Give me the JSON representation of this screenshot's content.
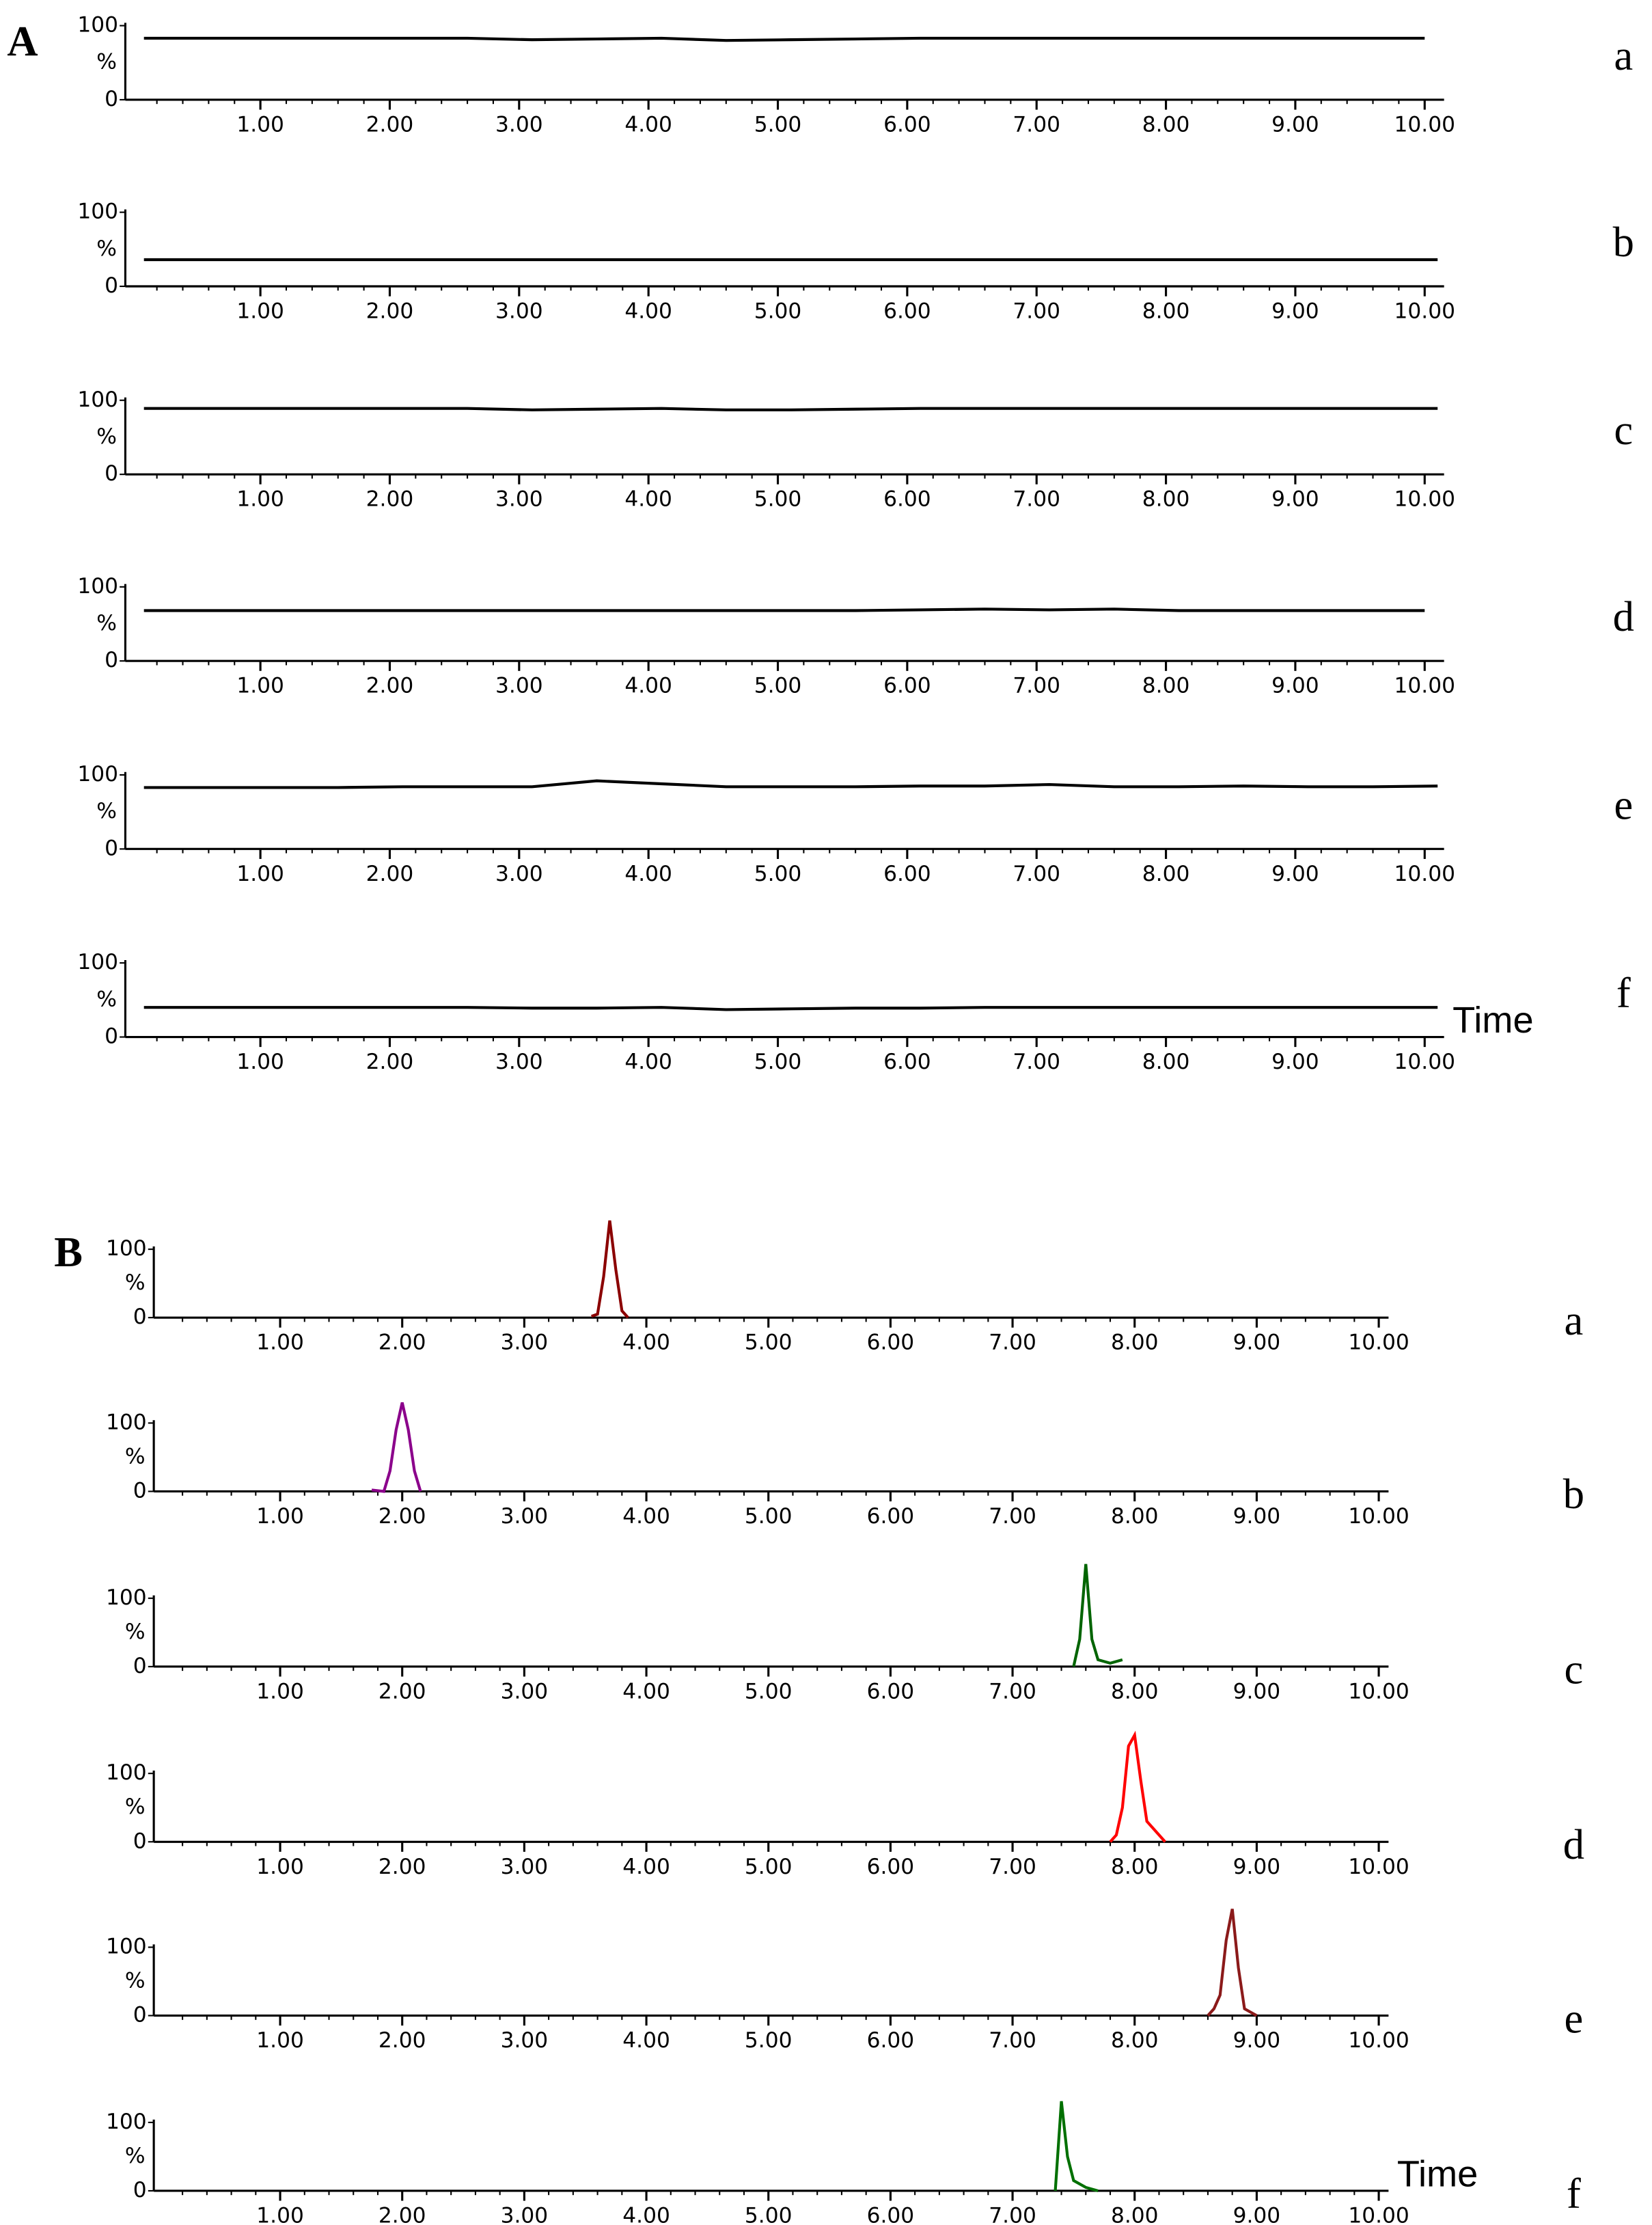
{
  "chart_data": [
    {
      "type": "line",
      "panel": "A",
      "label": "a",
      "y_label": "%",
      "xlim": [
        0,
        10.15
      ],
      "ylim": [
        0,
        100
      ],
      "yticks": [
        0,
        100
      ],
      "xticks": [
        {
          "value": 1,
          "label": "1.00"
        },
        {
          "value": 2,
          "label": "2.00"
        },
        {
          "value": 3,
          "label": "3.00"
        },
        {
          "value": 4,
          "label": "4.00"
        },
        {
          "value": 5,
          "label": "5.00"
        },
        {
          "value": 6,
          "label": "6.00"
        },
        {
          "value": 7,
          "label": "7.00"
        },
        {
          "value": 8,
          "label": "8.00"
        },
        {
          "value": 9,
          "label": "9.00"
        },
        {
          "value": 10,
          "label": "10.00"
        }
      ],
      "x": [
        0.1,
        0.6,
        1.1,
        1.6,
        2.1,
        2.6,
        3.1,
        3.6,
        4.1,
        4.6,
        5.1,
        5.6,
        6.1,
        6.6,
        7.1,
        7.6,
        8.1,
        8.6,
        9.1,
        9.6,
        10.0
      ],
      "series": [
        {
          "color": "#000000",
          "values": [
            83,
            83,
            83,
            83,
            83,
            83,
            81,
            82,
            83,
            80,
            81,
            82,
            83,
            83,
            83,
            83,
            83,
            83,
            83,
            83,
            83
          ]
        }
      ]
    },
    {
      "type": "line",
      "label": "b",
      "y_label": "%",
      "xlim": [
        0,
        10.15
      ],
      "ylim": [
        0,
        100
      ],
      "yticks": [
        0,
        100
      ],
      "xticks": [
        {
          "value": 1,
          "label": "1.00"
        },
        {
          "value": 2,
          "label": "2.00"
        },
        {
          "value": 3,
          "label": "3.00"
        },
        {
          "value": 4,
          "label": "4.00"
        },
        {
          "value": 5,
          "label": "5.00"
        },
        {
          "value": 6,
          "label": "6.00"
        },
        {
          "value": 7,
          "label": "7.00"
        },
        {
          "value": 8,
          "label": "8.00"
        },
        {
          "value": 9,
          "label": "9.00"
        },
        {
          "value": 10,
          "label": "10.00"
        }
      ],
      "x": [
        0.1,
        0.6,
        1.1,
        1.6,
        2.1,
        2.6,
        3.1,
        3.6,
        4.1,
        4.6,
        5.1,
        5.6,
        6.1,
        6.6,
        7.1,
        7.6,
        8.1,
        8.6,
        9.1,
        9.6,
        10.1
      ],
      "series": [
        {
          "color": "#000000",
          "values": [
            36,
            36,
            36,
            36,
            36,
            36,
            36,
            36,
            36,
            36,
            36,
            36,
            36,
            36,
            36,
            36,
            36,
            36,
            36,
            36,
            36
          ]
        }
      ]
    },
    {
      "type": "line",
      "label": "c",
      "y_label": "%",
      "xlim": [
        0,
        10.15
      ],
      "ylim": [
        0,
        100
      ],
      "yticks": [
        0,
        100
      ],
      "xticks": [
        {
          "value": 1,
          "label": "1.00"
        },
        {
          "value": 2,
          "label": "2.00"
        },
        {
          "value": 3,
          "label": "3.00"
        },
        {
          "value": 4,
          "label": "4.00"
        },
        {
          "value": 5,
          "label": "5.00"
        },
        {
          "value": 6,
          "label": "6.00"
        },
        {
          "value": 7,
          "label": "7.00"
        },
        {
          "value": 8,
          "label": "8.00"
        },
        {
          "value": 9,
          "label": "9.00"
        },
        {
          "value": 10,
          "label": "10.00"
        }
      ],
      "x": [
        0.1,
        0.6,
        1.1,
        1.6,
        2.1,
        2.6,
        3.1,
        3.6,
        4.1,
        4.6,
        5.1,
        5.6,
        6.1,
        6.6,
        7.1,
        7.6,
        8.1,
        8.6,
        9.1,
        9.6,
        10.1
      ],
      "series": [
        {
          "color": "#000000",
          "values": [
            89,
            89,
            89,
            89,
            89,
            89,
            87,
            88,
            89,
            87,
            87,
            88,
            89,
            89,
            89,
            89,
            89,
            89,
            89,
            89,
            89
          ]
        }
      ]
    },
    {
      "type": "line",
      "label": "d",
      "y_label": "%",
      "xlim": [
        0,
        10.15
      ],
      "ylim": [
        0,
        100
      ],
      "yticks": [
        0,
        100
      ],
      "xticks": [
        {
          "value": 1,
          "label": "1.00"
        },
        {
          "value": 2,
          "label": "2.00"
        },
        {
          "value": 3,
          "label": "3.00"
        },
        {
          "value": 4,
          "label": "4.00"
        },
        {
          "value": 5,
          "label": "5.00"
        },
        {
          "value": 6,
          "label": "6.00"
        },
        {
          "value": 7,
          "label": "7.00"
        },
        {
          "value": 8,
          "label": "8.00"
        },
        {
          "value": 9,
          "label": "9.00"
        },
        {
          "value": 10,
          "label": "10.00"
        }
      ],
      "x": [
        0.1,
        0.6,
        1.1,
        1.6,
        2.1,
        2.6,
        3.1,
        3.6,
        4.1,
        4.6,
        5.1,
        5.6,
        6.1,
        6.6,
        7.1,
        7.6,
        8.1,
        8.6,
        9.1,
        9.6,
        10.0
      ],
      "series": [
        {
          "color": "#000000",
          "values": [
            68,
            68,
            68,
            68,
            68,
            68,
            68,
            68,
            68,
            68,
            68,
            68,
            69,
            70,
            69,
            70,
            68,
            68,
            68,
            68,
            68
          ]
        }
      ]
    },
    {
      "type": "line",
      "label": "e",
      "y_label": "%",
      "xlim": [
        0,
        10.15
      ],
      "ylim": [
        0,
        100
      ],
      "yticks": [
        0,
        100
      ],
      "xticks": [
        {
          "value": 1,
          "label": "1.00"
        },
        {
          "value": 2,
          "label": "2.00"
        },
        {
          "value": 3,
          "label": "3.00"
        },
        {
          "value": 4,
          "label": "4.00"
        },
        {
          "value": 5,
          "label": "5.00"
        },
        {
          "value": 6,
          "label": "6.00"
        },
        {
          "value": 7,
          "label": "7.00"
        },
        {
          "value": 8,
          "label": "8.00"
        },
        {
          "value": 9,
          "label": "9.00"
        },
        {
          "value": 10,
          "label": "10.00"
        }
      ],
      "x": [
        0.1,
        0.6,
        1.1,
        1.6,
        2.1,
        2.6,
        3.1,
        3.6,
        4.1,
        4.6,
        5.1,
        5.6,
        6.1,
        6.6,
        7.1,
        7.6,
        8.1,
        8.6,
        9.1,
        9.6,
        10.1
      ],
      "series": [
        {
          "color": "#000000",
          "values": [
            83,
            83,
            83,
            83,
            84,
            84,
            84,
            92,
            88,
            84,
            84,
            84,
            85,
            85,
            87,
            84,
            84,
            85,
            84,
            84,
            85
          ]
        }
      ]
    },
    {
      "type": "line",
      "label": "f",
      "y_label": "%",
      "x_label": "Time",
      "xlim": [
        0,
        10.15
      ],
      "ylim": [
        0,
        100
      ],
      "yticks": [
        0,
        100
      ],
      "xticks": [
        {
          "value": 1,
          "label": "1.00"
        },
        {
          "value": 2,
          "label": "2.00"
        },
        {
          "value": 3,
          "label": "3.00"
        },
        {
          "value": 4,
          "label": "4.00"
        },
        {
          "value": 5,
          "label": "5.00"
        },
        {
          "value": 6,
          "label": "6.00"
        },
        {
          "value": 7,
          "label": "7.00"
        },
        {
          "value": 8,
          "label": "8.00"
        },
        {
          "value": 9,
          "label": "9.00"
        },
        {
          "value": 10,
          "label": "10.00"
        }
      ],
      "x": [
        0.1,
        0.6,
        1.1,
        1.6,
        2.1,
        2.6,
        3.1,
        3.6,
        4.1,
        4.6,
        5.1,
        5.6,
        6.1,
        6.6,
        7.1,
        7.6,
        8.1,
        8.6,
        9.1,
        9.6,
        10.1
      ],
      "series": [
        {
          "color": "#000000",
          "values": [
            40,
            40,
            40,
            40,
            40,
            40,
            39,
            39,
            40,
            37,
            38,
            39,
            39,
            40,
            40,
            40,
            40,
            40,
            40,
            40,
            40
          ]
        }
      ]
    },
    {
      "type": "line",
      "panel": "B",
      "label": "a",
      "y_label": "%",
      "xlim": [
        0,
        10.08
      ],
      "ylim": [
        0,
        100
      ],
      "yticks": [
        0,
        100
      ],
      "xticks": [
        {
          "value": 1,
          "label": "1.00"
        },
        {
          "value": 2,
          "label": "2.00"
        },
        {
          "value": 3,
          "label": "3.00"
        },
        {
          "value": 4,
          "label": "4.00"
        },
        {
          "value": 5,
          "label": "5.00"
        },
        {
          "value": 6,
          "label": "6.00"
        },
        {
          "value": 7,
          "label": "7.00"
        },
        {
          "value": 8,
          "label": "8.00"
        },
        {
          "value": 9,
          "label": "9.00"
        },
        {
          "value": 10,
          "label": "10.00"
        }
      ],
      "x": [
        3.55,
        3.6,
        3.65,
        3.7,
        3.75,
        3.8,
        3.85
      ],
      "series": [
        {
          "color": "#8b0000",
          "values": [
            2,
            5,
            60,
            142,
            70,
            10,
            0
          ]
        }
      ]
    },
    {
      "type": "line",
      "label": "b",
      "y_label": "%",
      "xlim": [
        0,
        10.08
      ],
      "ylim": [
        0,
        100
      ],
      "yticks": [
        0,
        100
      ],
      "xticks": [
        {
          "value": 1,
          "label": "1.00"
        },
        {
          "value": 2,
          "label": "2.00"
        },
        {
          "value": 3,
          "label": "3.00"
        },
        {
          "value": 4,
          "label": "4.00"
        },
        {
          "value": 5,
          "label": "5.00"
        },
        {
          "value": 6,
          "label": "6.00"
        },
        {
          "value": 7,
          "label": "7.00"
        },
        {
          "value": 8,
          "label": "8.00"
        },
        {
          "value": 9,
          "label": "9.00"
        },
        {
          "value": 10,
          "label": "10.00"
        }
      ],
      "x": [
        1.75,
        1.85,
        1.9,
        1.95,
        2.0,
        2.05,
        2.1,
        2.15
      ],
      "series": [
        {
          "color": "#8b008b",
          "values": [
            2,
            0,
            30,
            90,
            130,
            90,
            30,
            0
          ]
        }
      ]
    },
    {
      "type": "line",
      "label": "c",
      "y_label": "%",
      "xlim": [
        0,
        10.08
      ],
      "ylim": [
        0,
        100
      ],
      "yticks": [
        0,
        100
      ],
      "xticks": [
        {
          "value": 1,
          "label": "1.00"
        },
        {
          "value": 2,
          "label": "2.00"
        },
        {
          "value": 3,
          "label": "3.00"
        },
        {
          "value": 4,
          "label": "4.00"
        },
        {
          "value": 5,
          "label": "5.00"
        },
        {
          "value": 6,
          "label": "6.00"
        },
        {
          "value": 7,
          "label": "7.00"
        },
        {
          "value": 8,
          "label": "8.00"
        },
        {
          "value": 9,
          "label": "9.00"
        },
        {
          "value": 10,
          "label": "10.00"
        }
      ],
      "x": [
        7.5,
        7.55,
        7.6,
        7.65,
        7.7,
        7.8,
        7.9
      ],
      "series": [
        {
          "color": "#006400",
          "values": [
            0,
            40,
            150,
            40,
            10,
            5,
            10
          ]
        }
      ]
    },
    {
      "type": "line",
      "label": "d",
      "y_label": "%",
      "xlim": [
        0,
        10.08
      ],
      "ylim": [
        0,
        100
      ],
      "yticks": [
        0,
        100
      ],
      "xticks": [
        {
          "value": 1,
          "label": "1.00"
        },
        {
          "value": 2,
          "label": "2.00"
        },
        {
          "value": 3,
          "label": "3.00"
        },
        {
          "value": 4,
          "label": "4.00"
        },
        {
          "value": 5,
          "label": "5.00"
        },
        {
          "value": 6,
          "label": "6.00"
        },
        {
          "value": 7,
          "label": "7.00"
        },
        {
          "value": 8,
          "label": "8.00"
        },
        {
          "value": 9,
          "label": "9.00"
        },
        {
          "value": 10,
          "label": "10.00"
        }
      ],
      "x": [
        7.8,
        7.85,
        7.9,
        7.95,
        8.0,
        8.05,
        8.1,
        8.2,
        8.25
      ],
      "series": [
        {
          "color": "#ff0000",
          "values": [
            0,
            10,
            50,
            140,
            156,
            90,
            30,
            10,
            0
          ]
        }
      ]
    },
    {
      "type": "line",
      "label": "e",
      "y_label": "%",
      "xlim": [
        0,
        10.08
      ],
      "ylim": [
        0,
        100
      ],
      "yticks": [
        0,
        100
      ],
      "xticks": [
        {
          "value": 1,
          "label": "1.00"
        },
        {
          "value": 2,
          "label": "2.00"
        },
        {
          "value": 3,
          "label": "3.00"
        },
        {
          "value": 4,
          "label": "4.00"
        },
        {
          "value": 5,
          "label": "5.00"
        },
        {
          "value": 6,
          "label": "6.00"
        },
        {
          "value": 7,
          "label": "7.00"
        },
        {
          "value": 8,
          "label": "8.00"
        },
        {
          "value": 9,
          "label": "9.00"
        },
        {
          "value": 10,
          "label": "10.00"
        }
      ],
      "x": [
        8.6,
        8.65,
        8.7,
        8.75,
        8.8,
        8.85,
        8.9,
        9.0
      ],
      "series": [
        {
          "color": "#8b1a1a",
          "values": [
            0,
            10,
            30,
            110,
            156,
            70,
            10,
            0
          ]
        }
      ]
    },
    {
      "type": "line",
      "label": "f",
      "y_label": "%",
      "x_label": "Time",
      "xlim": [
        0,
        10.08
      ],
      "ylim": [
        0,
        100
      ],
      "yticks": [
        0,
        100
      ],
      "xticks": [
        {
          "value": 1,
          "label": "1.00"
        },
        {
          "value": 2,
          "label": "2.00"
        },
        {
          "value": 3,
          "label": "3.00"
        },
        {
          "value": 4,
          "label": "4.00"
        },
        {
          "value": 5,
          "label": "5.00"
        },
        {
          "value": 6,
          "label": "6.00"
        },
        {
          "value": 7,
          "label": "7.00"
        },
        {
          "value": 8,
          "label": "8.00"
        },
        {
          "value": 9,
          "label": "9.00"
        },
        {
          "value": 10,
          "label": "10.00"
        }
      ],
      "x": [
        7.35,
        7.4,
        7.45,
        7.5,
        7.6,
        7.7
      ],
      "series": [
        {
          "color": "#007000",
          "values": [
            0,
            131,
            50,
            15,
            5,
            0
          ]
        }
      ]
    }
  ]
}
